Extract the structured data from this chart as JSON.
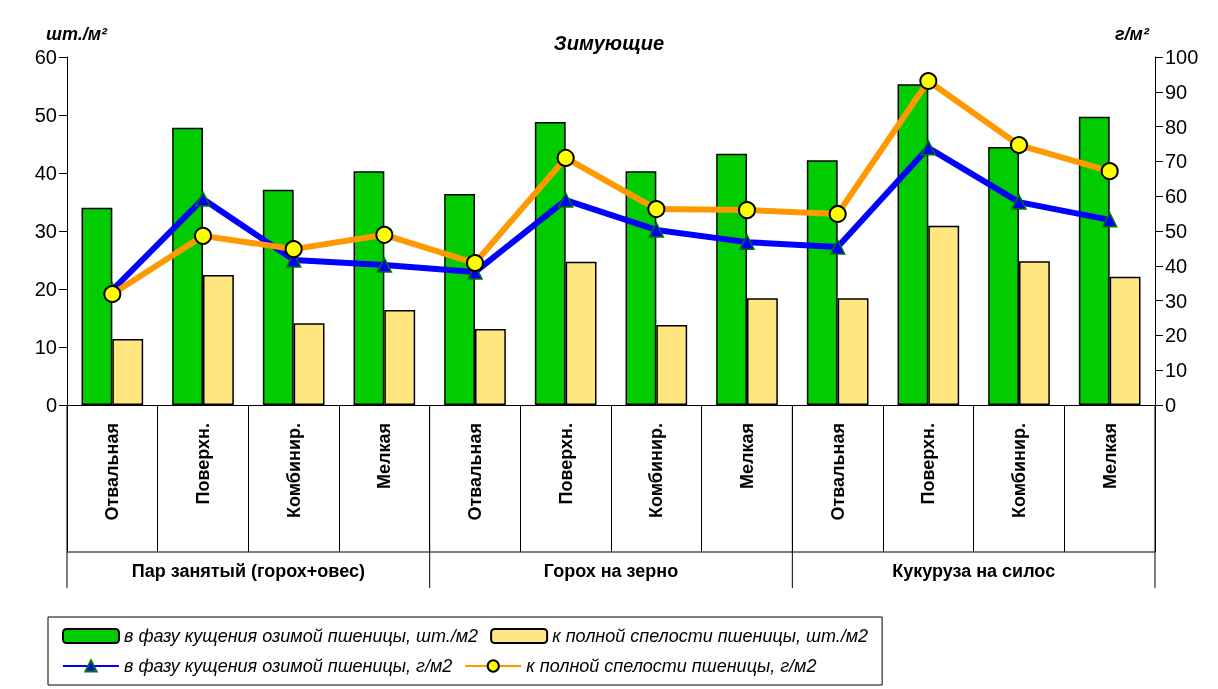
{
  "chart_data": {
    "type": "bar",
    "title": "Зимующие",
    "ylabel": "шт./м²",
    "y2label": "г/м²",
    "categories": [
      "Отвальная",
      "Поверхн.",
      "Комбинир.",
      "Мелкая",
      "Отвальная",
      "Поверхн.",
      "Комбинир.",
      "Мелкая",
      "Отвальная",
      "Поверхн.",
      "Комбинир.",
      "Мелкая"
    ],
    "annotations": [
      "Пар занятый (горох+овес)",
      "Горох на зерно",
      "Кукуруза на силос"
    ],
    "series": [
      {
        "name": "в фазу кущения озимой пшеницы, шт./м2",
        "color": "#00cc00",
        "values": [
          34.0,
          47.8,
          37.1,
          40.3,
          36.4,
          48.8,
          40.3,
          43.3,
          42.2,
          55.3,
          44.5,
          49.7
        ]
      },
      {
        "name": "к полной спелости пшеницы, шт./м2",
        "color": "#ffe680",
        "values": [
          11.4,
          22.4,
          14.1,
          16.4,
          13.1,
          24.7,
          13.8,
          18.4,
          18.4,
          30.9,
          24.8,
          22.1
        ]
      },
      {
        "name": "в фазу кущения озимой пшеницы, г/м2",
        "type": "line",
        "axis": "y2",
        "marker": "triangle",
        "color": "#0000ff",
        "values": [
          33,
          59.2,
          41.7,
          40.2,
          38.2,
          58.9,
          50.3,
          46.8,
          45.4,
          73.9,
          58.3,
          53.2
        ]
      },
      {
        "name": "к полной спелости пшеницы, г/м2",
        "type": "line",
        "axis": "y2",
        "marker": "circle",
        "color": "#ff9900",
        "values": [
          31.9,
          48.6,
          44.8,
          48.9,
          40.8,
          71,
          56.3,
          56,
          54.9,
          93.1,
          74.7,
          67.2
        ]
      }
    ],
    "ylim": [
      0,
      60
    ],
    "yticks": [
      0,
      10,
      20,
      30,
      40,
      50,
      60
    ],
    "y2lim": [
      0,
      100
    ],
    "y2ticks": [
      0,
      10,
      20,
      30,
      40,
      50,
      60,
      70,
      80,
      90,
      100
    ],
    "legend": "bottom",
    "grid": false,
    "line_style": "solid"
  }
}
